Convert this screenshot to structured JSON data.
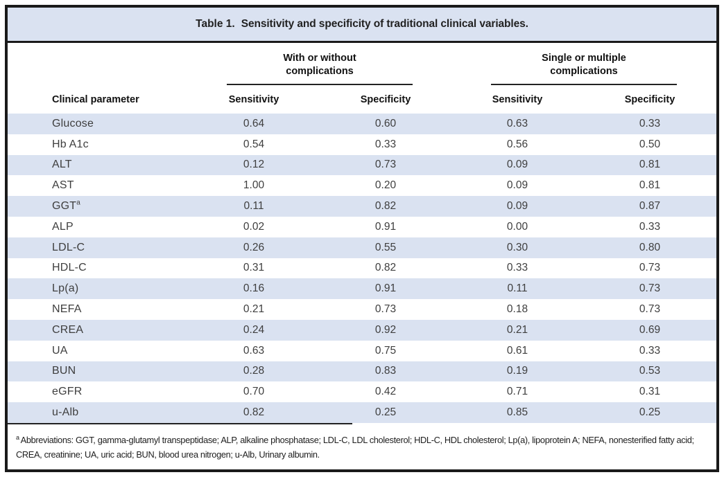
{
  "title": {
    "label": "Table 1.",
    "text": "Sensitivity and specificity of traditional clinical variables."
  },
  "table": {
    "param_header": "Clinical parameter",
    "groups": [
      {
        "label": "With or without complications"
      },
      {
        "label": "Single or multiple complications"
      }
    ],
    "sub_headers": [
      "Sensitivity",
      "Specificity",
      "Sensitivity",
      "Specificity"
    ],
    "rows": [
      {
        "param": "Glucose",
        "values": [
          "0.64",
          "0.60",
          "0.63",
          "0.33"
        ]
      },
      {
        "param": "Hb A1c",
        "values": [
          "0.54",
          "0.33",
          "0.56",
          "0.50"
        ]
      },
      {
        "param": "ALT",
        "values": [
          "0.12",
          "0.73",
          "0.09",
          "0.81"
        ]
      },
      {
        "param": "AST",
        "values": [
          "1.00",
          "0.20",
          "0.09",
          "0.81"
        ]
      },
      {
        "param": "GGT",
        "sup": "a",
        "values": [
          "0.11",
          "0.82",
          "0.09",
          "0.87"
        ]
      },
      {
        "param": "ALP",
        "values": [
          "0.02",
          "0.91",
          "0.00",
          "0.33"
        ]
      },
      {
        "param": "LDL-C",
        "values": [
          "0.26",
          "0.55",
          "0.30",
          "0.80"
        ]
      },
      {
        "param": "HDL-C",
        "values": [
          "0.31",
          "0.82",
          "0.33",
          "0.73"
        ]
      },
      {
        "param": "Lp(a)",
        "values": [
          "0.16",
          "0.91",
          "0.11",
          "0.73"
        ]
      },
      {
        "param": "NEFA",
        "values": [
          "0.21",
          "0.73",
          "0.18",
          "0.73"
        ]
      },
      {
        "param": "CREA",
        "values": [
          "0.24",
          "0.92",
          "0.21",
          "0.69"
        ]
      },
      {
        "param": "UA",
        "values": [
          "0.63",
          "0.75",
          "0.61",
          "0.33"
        ]
      },
      {
        "param": "BUN",
        "values": [
          "0.28",
          "0.83",
          "0.19",
          "0.53"
        ]
      },
      {
        "param": "eGFR",
        "values": [
          "0.70",
          "0.42",
          "0.71",
          "0.31"
        ]
      },
      {
        "param": "u-Alb",
        "values": [
          "0.82",
          "0.25",
          "0.85",
          "0.25"
        ]
      }
    ]
  },
  "footnote": {
    "marker": "a",
    "text": "Abbreviations: GGT, gamma-glutamyl transpeptidase; ALP, alkaline phosphatase; LDL-C, LDL cholesterol; HDL-C, HDL cholesterol; Lp(a), lipoprotein A; NEFA, nonesterified fatty acid; CREA, creatinine; UA, uric acid; BUN, blood urea nitrogen; u-Alb, Urinary albumin."
  },
  "colors": {
    "stripe": "#dae2f1",
    "title_bg": "#dae2f1",
    "border": "#1a1a1a",
    "body_text": "#3e3e3e"
  }
}
